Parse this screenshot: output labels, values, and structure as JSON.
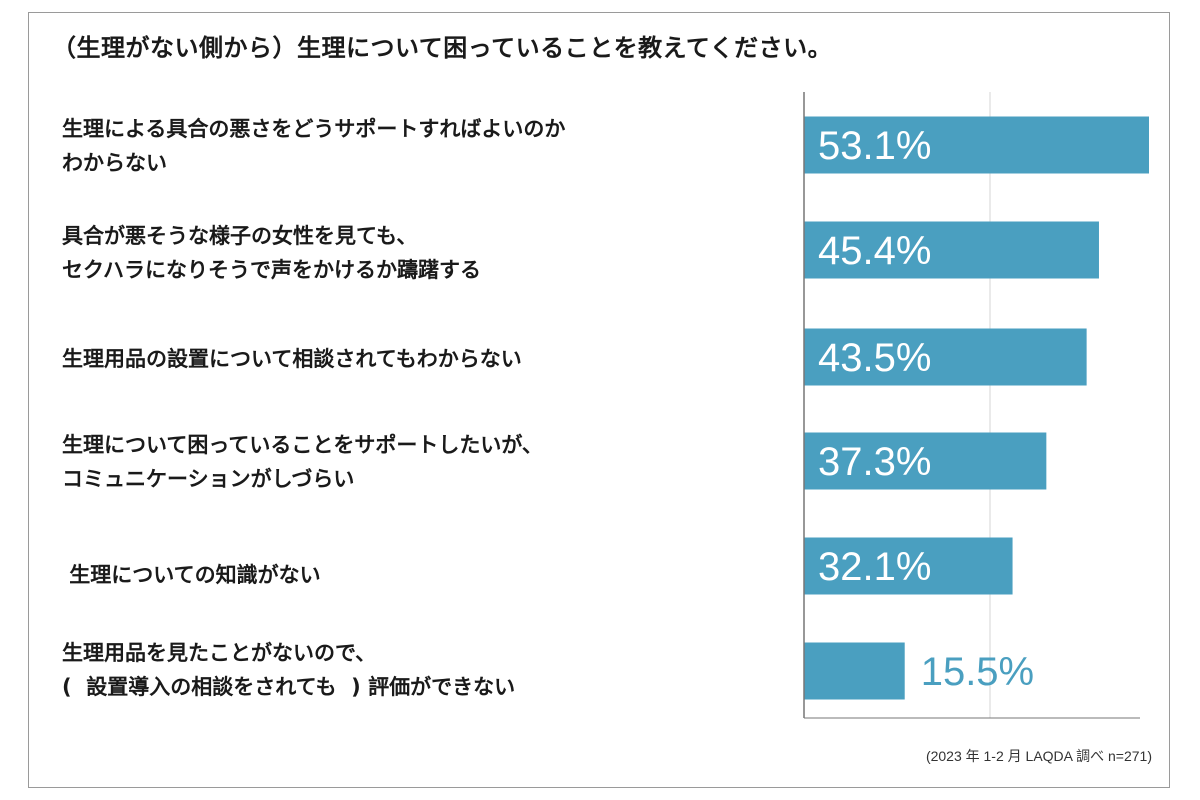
{
  "chart_data": {
    "type": "bar",
    "orientation": "horizontal",
    "title": "（生理がない側から）生理について困っていることを教えてください。",
    "categories": [
      "生理による具合の悪さをどうサポートすればよいのか\nわからない",
      "具合が悪そうな様子の女性を見ても、\nセクハラになりそうで声をかけるか躊躇する",
      "生理用品の設置について相談されてもわからない",
      "生理について困っていることをサポートしたいが、\nコミュニケーションがしづらい",
      " 生理についての知識がない",
      "生理用品を見たことがないので、\n(  設置導入の相談をされても  ) 評価ができない"
    ],
    "values": [
      53.1,
      45.4,
      43.5,
      37.3,
      32.1,
      15.5
    ],
    "value_labels": [
      "53.1%",
      "45.4%",
      "43.5%",
      "37.3%",
      "32.1%",
      "15.5%"
    ],
    "xlim": [
      0,
      53.1
    ],
    "grid": true,
    "bar_color": "#4a9fc0",
    "inside_label_color": "#ffffff",
    "outside_label_color": "#4a9fc0",
    "source": "(2023 年 1-2 月 LAQDA 調べ n=271)"
  }
}
